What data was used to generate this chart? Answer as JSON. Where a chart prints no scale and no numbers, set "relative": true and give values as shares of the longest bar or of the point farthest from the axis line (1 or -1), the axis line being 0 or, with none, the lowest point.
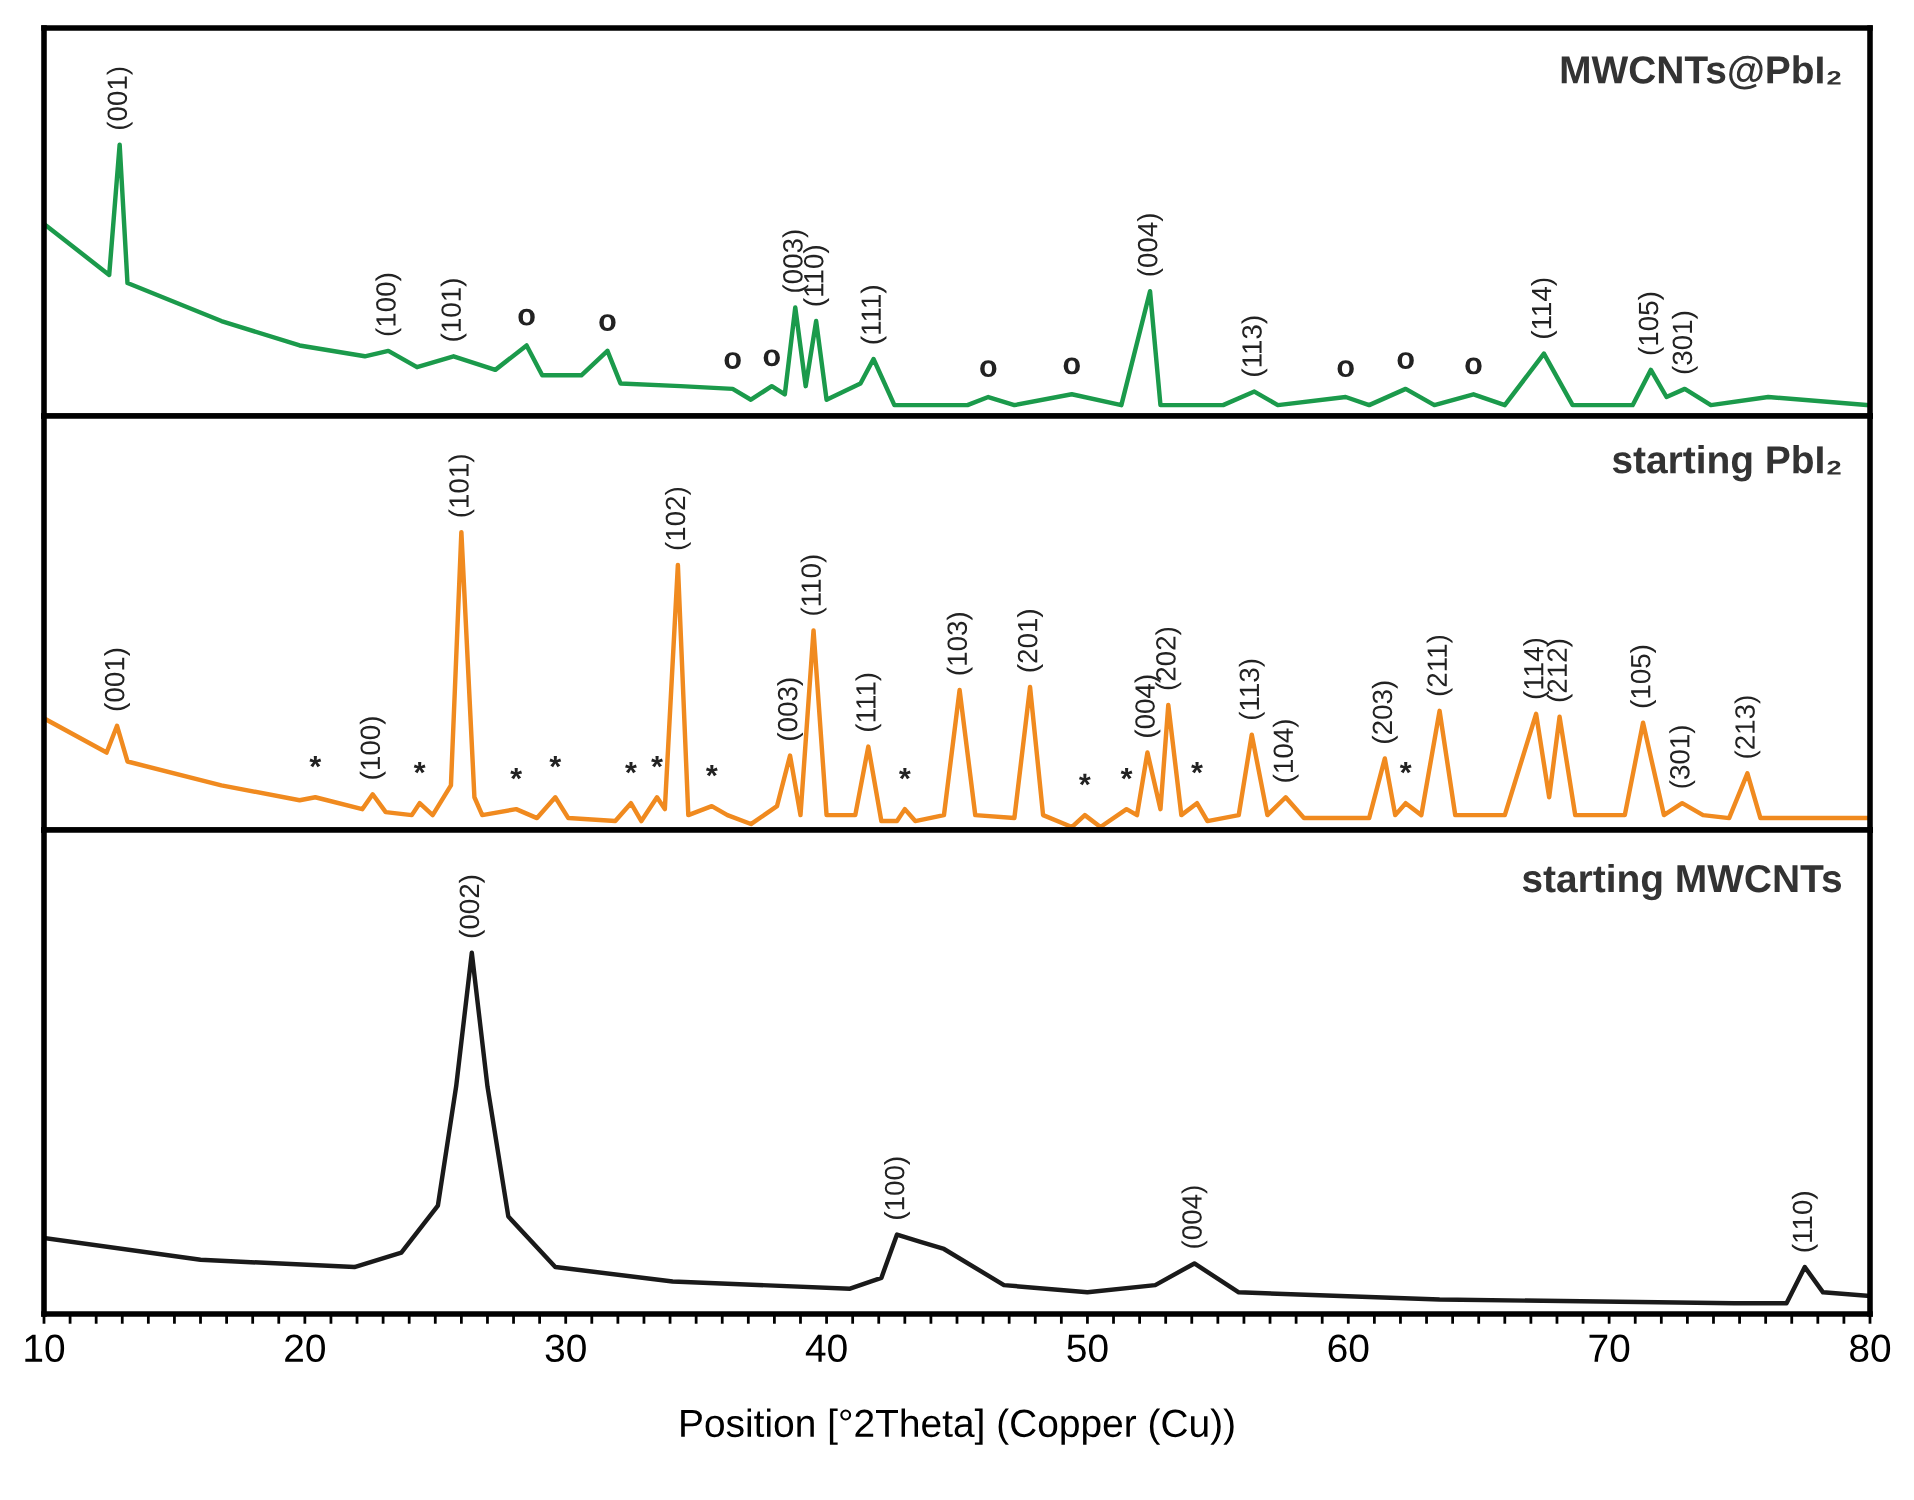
{
  "chart_data": [
    {
      "type": "line",
      "title": "MWCNTs@PbI₂",
      "relative": true,
      "tick_labels": false,
      "xlim": [
        10,
        80
      ],
      "grid": false,
      "legend": false,
      "x": [
        10.1,
        12.5,
        12.9,
        13.2,
        16.8,
        19.8,
        22.3,
        23.2,
        24.3,
        25.7,
        27.3,
        28.5,
        29.1,
        30.6,
        31.6,
        32.1,
        34.4,
        36.4,
        37.1,
        37.9,
        38.4,
        38.8,
        39.2,
        39.6,
        40.0,
        41.3,
        41.8,
        42.6,
        45.4,
        46.2,
        47.2,
        49.4,
        51.3,
        52.4,
        52.8,
        55.2,
        56.4,
        57.3,
        59.9,
        60.8,
        62.2,
        63.3,
        64.8,
        66.0,
        67.5,
        68.6,
        70.9,
        71.6,
        72.2,
        72.9,
        73.9,
        76.1,
        79.9
      ],
      "series": [
        {
          "color": "#1b9a4b",
          "values": [
            0.7,
            0.52,
            1.0,
            0.49,
            0.35,
            0.26,
            0.22,
            0.24,
            0.18,
            0.22,
            0.17,
            0.26,
            0.15,
            0.15,
            0.24,
            0.12,
            0.11,
            0.1,
            0.06,
            0.11,
            0.08,
            0.4,
            0.11,
            0.35,
            0.06,
            0.12,
            0.21,
            0.04,
            0.04,
            0.07,
            0.04,
            0.08,
            0.04,
            0.46,
            0.04,
            0.04,
            0.09,
            0.04,
            0.07,
            0.04,
            0.1,
            0.04,
            0.08,
            0.04,
            0.23,
            0.04,
            0.04,
            0.17,
            0.07,
            0.1,
            0.04,
            0.07,
            0.04
          ]
        }
      ],
      "annotations": [
        {
          "text": "(001)",
          "x": 12.9,
          "y": 1.0
        },
        {
          "text": "(100)",
          "x": 23.2,
          "y": 0.24
        },
        {
          "text": "(101)",
          "x": 25.7,
          "y": 0.22
        },
        {
          "text": "o",
          "x": 28.5,
          "y": 0.26
        },
        {
          "text": "o",
          "x": 31.6,
          "y": 0.24
        },
        {
          "text": "o",
          "x": 36.4,
          "y": 0.1
        },
        {
          "text": "o",
          "x": 37.9,
          "y": 0.11
        },
        {
          "text": "(003)",
          "x": 38.8,
          "y": 0.4
        },
        {
          "text": "(110)",
          "x": 39.6,
          "y": 0.35
        },
        {
          "text": "(111)",
          "x": 41.8,
          "y": 0.21
        },
        {
          "text": "o",
          "x": 46.2,
          "y": 0.07
        },
        {
          "text": "o",
          "x": 49.4,
          "y": 0.08
        },
        {
          "text": "(004)",
          "x": 52.4,
          "y": 0.46
        },
        {
          "text": "(113)",
          "x": 56.4,
          "y": 0.09
        },
        {
          "text": "o",
          "x": 59.9,
          "y": 0.07
        },
        {
          "text": "o",
          "x": 62.2,
          "y": 0.1
        },
        {
          "text": "o",
          "x": 64.8,
          "y": 0.08
        },
        {
          "text": "(114)",
          "x": 67.5,
          "y": 0.23
        },
        {
          "text": "(105)",
          "x": 71.6,
          "y": 0.17
        },
        {
          "text": "(301)",
          "x": 72.9,
          "y": 0.1
        }
      ]
    },
    {
      "type": "line",
      "title": "starting PbI₂",
      "relative": true,
      "tick_labels": false,
      "xlim": [
        10,
        80
      ],
      "grid": false,
      "legend": false,
      "x": [
        10.1,
        12.4,
        12.8,
        13.2,
        16.8,
        19.8,
        20.4,
        22.2,
        22.6,
        23.1,
        24.1,
        24.4,
        24.9,
        25.6,
        26.0,
        26.5,
        26.8,
        28.1,
        28.9,
        29.6,
        30.1,
        31.9,
        32.5,
        32.9,
        33.5,
        33.8,
        34.3,
        34.7,
        35.6,
        36.2,
        37.1,
        38.1,
        38.6,
        39.0,
        39.5,
        40.0,
        41.1,
        41.6,
        42.1,
        42.7,
        43.0,
        43.4,
        44.5,
        45.1,
        45.7,
        47.2,
        47.8,
        48.3,
        49.4,
        49.9,
        50.5,
        51.5,
        51.9,
        52.3,
        52.8,
        53.1,
        53.6,
        54.2,
        54.6,
        55.8,
        56.3,
        56.9,
        57.6,
        58.3,
        60.8,
        61.4,
        61.8,
        62.2,
        62.8,
        63.5,
        64.1,
        66.0,
        67.2,
        67.7,
        68.1,
        68.7,
        70.6,
        71.3,
        72.1,
        72.8,
        73.6,
        74.6,
        75.3,
        75.8,
        79.9
      ],
      "series": [
        {
          "color": "#f08a1f",
          "values": [
            0.37,
            0.26,
            0.35,
            0.23,
            0.15,
            0.1,
            0.11,
            0.07,
            0.12,
            0.06,
            0.05,
            0.09,
            0.05,
            0.15,
            1.0,
            0.11,
            0.05,
            0.07,
            0.04,
            0.11,
            0.04,
            0.03,
            0.09,
            0.03,
            0.11,
            0.07,
            0.89,
            0.05,
            0.08,
            0.05,
            0.02,
            0.08,
            0.25,
            0.05,
            0.67,
            0.05,
            0.05,
            0.28,
            0.03,
            0.03,
            0.07,
            0.03,
            0.05,
            0.47,
            0.05,
            0.04,
            0.48,
            0.05,
            0.01,
            0.05,
            0.01,
            0.07,
            0.05,
            0.26,
            0.07,
            0.42,
            0.05,
            0.09,
            0.03,
            0.05,
            0.32,
            0.05,
            0.11,
            0.04,
            0.04,
            0.24,
            0.05,
            0.09,
            0.05,
            0.4,
            0.05,
            0.05,
            0.39,
            0.11,
            0.38,
            0.05,
            0.05,
            0.36,
            0.05,
            0.09,
            0.05,
            0.04,
            0.19,
            0.04,
            0.04
          ]
        }
      ],
      "annotations": [
        {
          "text": "(001)",
          "x": 12.8,
          "y": 0.35
        },
        {
          "text": "*",
          "x": 20.4,
          "y": 0.11
        },
        {
          "text": "(100)",
          "x": 22.6,
          "y": 0.12
        },
        {
          "text": "*",
          "x": 24.4,
          "y": 0.09
        },
        {
          "text": "(101)",
          "x": 26.0,
          "y": 1.0
        },
        {
          "text": "*",
          "x": 28.1,
          "y": 0.07
        },
        {
          "text": "*",
          "x": 29.6,
          "y": 0.11
        },
        {
          "text": "*",
          "x": 32.5,
          "y": 0.09
        },
        {
          "text": "*",
          "x": 33.5,
          "y": 0.11
        },
        {
          "text": "(102)",
          "x": 34.3,
          "y": 0.89
        },
        {
          "text": "*",
          "x": 35.6,
          "y": 0.08
        },
        {
          "text": "(003)",
          "x": 38.6,
          "y": 0.25
        },
        {
          "text": "(110)",
          "x": 39.5,
          "y": 0.67
        },
        {
          "text": "(111)",
          "x": 41.6,
          "y": 0.28
        },
        {
          "text": "*",
          "x": 43.0,
          "y": 0.07
        },
        {
          "text": "(103)",
          "x": 45.1,
          "y": 0.47
        },
        {
          "text": "(201)",
          "x": 47.8,
          "y": 0.48
        },
        {
          "text": "*",
          "x": 49.9,
          "y": 0.05
        },
        {
          "text": "*",
          "x": 51.5,
          "y": 0.07
        },
        {
          "text": "(004)",
          "x": 52.3,
          "y": 0.26
        },
        {
          "text": "(202)",
          "x": 53.1,
          "y": 0.42
        },
        {
          "text": "*",
          "x": 54.2,
          "y": 0.09
        },
        {
          "text": "(113)",
          "x": 56.3,
          "y": 0.32
        },
        {
          "text": "(104)",
          "x": 57.6,
          "y": 0.11
        },
        {
          "text": "(203)",
          "x": 61.4,
          "y": 0.24
        },
        {
          "text": "*",
          "x": 62.2,
          "y": 0.09
        },
        {
          "text": "(211)",
          "x": 63.5,
          "y": 0.4
        },
        {
          "text": "(114)",
          "x": 67.2,
          "y": 0.39
        },
        {
          "text": "(212)",
          "x": 68.1,
          "y": 0.38
        },
        {
          "text": "(105)",
          "x": 71.3,
          "y": 0.36
        },
        {
          "text": "(301)",
          "x": 72.8,
          "y": 0.09
        },
        {
          "text": "(213)",
          "x": 75.3,
          "y": 0.19
        }
      ]
    },
    {
      "type": "line",
      "title": "starting MWCNTs",
      "relative": true,
      "tick_labels": "x",
      "xlim": [
        10,
        80
      ],
      "grid": false,
      "legend": false,
      "xlabel": "Position [°2Theta] (Copper (Cu))",
      "xticks": [
        10,
        {
          "value": 11,
          "label": null
        },
        {
          "value": 12,
          "label": null
        },
        {
          "value": 13,
          "label": null
        },
        {
          "value": 14,
          "label": null
        },
        {
          "value": 15,
          "label": null
        },
        {
          "value": 16,
          "label": null
        },
        {
          "value": 17,
          "label": null
        },
        {
          "value": 18,
          "label": null
        },
        {
          "value": 19,
          "label": null
        },
        20,
        {
          "value": 21,
          "label": null
        },
        {
          "value": 22,
          "label": null
        },
        {
          "value": 23,
          "label": null
        },
        {
          "value": 24,
          "label": null
        },
        {
          "value": 25,
          "label": null
        },
        {
          "value": 26,
          "label": null
        },
        {
          "value": 27,
          "label": null
        },
        {
          "value": 28,
          "label": null
        },
        {
          "value": 29,
          "label": null
        },
        30,
        {
          "value": 31,
          "label": null
        },
        {
          "value": 32,
          "label": null
        },
        {
          "value": 33,
          "label": null
        },
        {
          "value": 34,
          "label": null
        },
        {
          "value": 35,
          "label": null
        },
        {
          "value": 36,
          "label": null
        },
        {
          "value": 37,
          "label": null
        },
        {
          "value": 38,
          "label": null
        },
        {
          "value": 39,
          "label": null
        },
        40,
        {
          "value": 41,
          "label": null
        },
        {
          "value": 42,
          "label": null
        },
        {
          "value": 43,
          "label": null
        },
        {
          "value": 44,
          "label": null
        },
        {
          "value": 45,
          "label": null
        },
        {
          "value": 46,
          "label": null
        },
        {
          "value": 47,
          "label": null
        },
        {
          "value": 48,
          "label": null
        },
        {
          "value": 49,
          "label": null
        },
        50,
        {
          "value": 51,
          "label": null
        },
        {
          "value": 52,
          "label": null
        },
        {
          "value": 53,
          "label": null
        },
        {
          "value": 54,
          "label": null
        },
        {
          "value": 55,
          "label": null
        },
        {
          "value": 56,
          "label": null
        },
        {
          "value": 57,
          "label": null
        },
        {
          "value": 58,
          "label": null
        },
        {
          "value": 59,
          "label": null
        },
        60,
        {
          "value": 61,
          "label": null
        },
        {
          "value": 62,
          "label": null
        },
        {
          "value": 63,
          "label": null
        },
        {
          "value": 64,
          "label": null
        },
        {
          "value": 65,
          "label": null
        },
        {
          "value": 66,
          "label": null
        },
        {
          "value": 67,
          "label": null
        },
        {
          "value": 68,
          "label": null
        },
        {
          "value": 69,
          "label": null
        },
        70,
        {
          "value": 71,
          "label": null
        },
        {
          "value": 72,
          "label": null
        },
        {
          "value": 73,
          "label": null
        },
        {
          "value": 74,
          "label": null
        },
        {
          "value": 75,
          "label": null
        },
        {
          "value": 76,
          "label": null
        },
        {
          "value": 77,
          "label": null
        },
        {
          "value": 78,
          "label": null
        },
        {
          "value": 79,
          "label": null
        },
        80
      ],
      "x": [
        10.06,
        16.0,
        21.9,
        23.7,
        25.1,
        25.8,
        26.4,
        27.0,
        27.8,
        29.6,
        34.1,
        40.9,
        42.1,
        42.7,
        43.6,
        44.5,
        46.8,
        50.0,
        52.6,
        54.1,
        55.8,
        63.5,
        74.8,
        76.8,
        77.5,
        78.2,
        80.0
      ],
      "series": [
        {
          "color": "#1a1a1a",
          "values": [
            0.21,
            0.15,
            0.13,
            0.17,
            0.3,
            0.63,
            1.0,
            0.63,
            0.27,
            0.13,
            0.09,
            0.07,
            0.1,
            0.22,
            0.2,
            0.18,
            0.08,
            0.06,
            0.08,
            0.14,
            0.06,
            0.04,
            0.03,
            0.03,
            0.13,
            0.06,
            0.05
          ]
        }
      ],
      "annotations": [
        {
          "text": "(002)",
          "x": 26.4,
          "y": 1.0
        },
        {
          "text": "(100)",
          "x": 42.7,
          "y": 0.22
        },
        {
          "text": "(004)",
          "x": 54.1,
          "y": 0.14
        },
        {
          "text": "(110)",
          "x": 77.5,
          "y": 0.13
        }
      ]
    }
  ]
}
